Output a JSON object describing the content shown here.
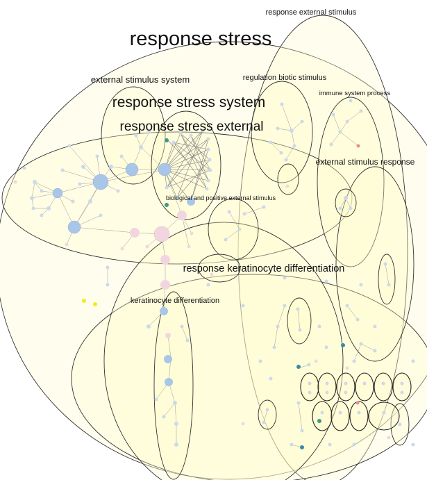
{
  "labels": {
    "response_stress": "response stress",
    "response_external_stimulus": "response external stimulus",
    "external_stimulus_system": "external stimulus system",
    "regulation_biotic_stimulus": "regulation biotic stimulus",
    "immune_system_process": "immune system process",
    "response_stress_system": "response stress system",
    "response_stress_external": "response stress external",
    "external_stimulus_response": "external stimulus response",
    "biological_and_positive": "biological and positive external stimulus",
    "response_keratinocyte_differentiation": "response keratinocyte differentiation",
    "keratinocyte_differentiation": "keratinocyte differentiation"
  },
  "colors": {
    "cluster_fill": "#fffbcf",
    "cluster_stroke": "#333333",
    "node_blue": "#a9c6e8",
    "node_pink": "#f1d6e0",
    "node_teal": "#3a9a8a",
    "node_yellow": "#f2ea1e",
    "edge": "#9a9a9a"
  }
}
